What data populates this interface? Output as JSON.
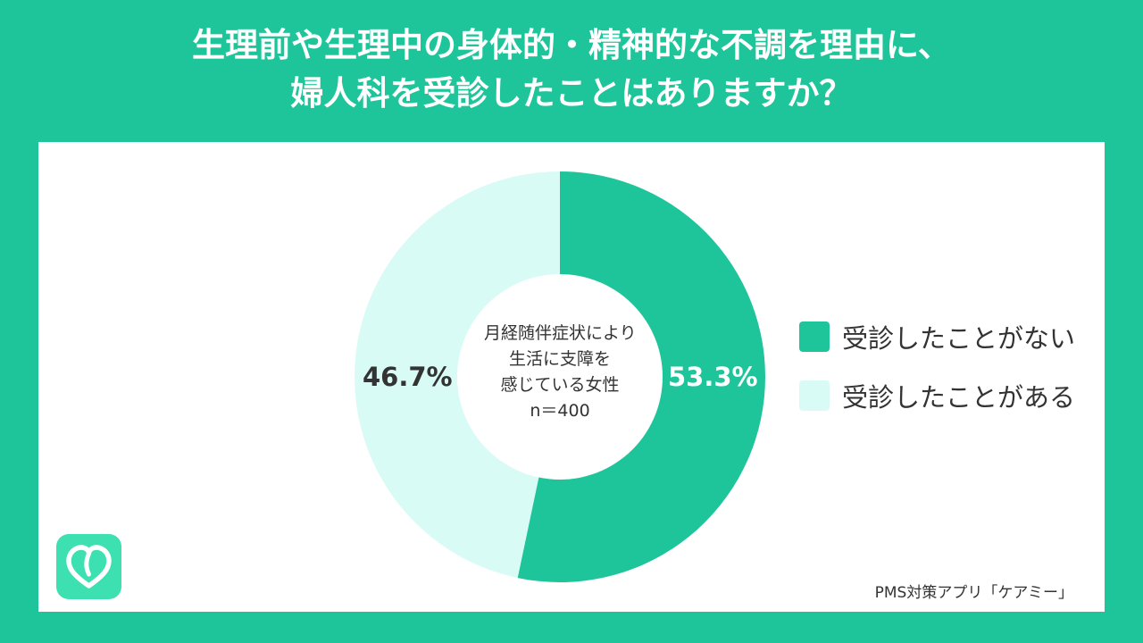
{
  "title_lines": [
    "生理前や生理中の身体的・精神的な不調を理由に、",
    "婦人科を受診したことはありますか？"
  ],
  "center_label_lines": [
    "月経随伴症状により",
    "生活に支障を",
    "感じている女性",
    "n＝400"
  ],
  "credit": "PMS対策アプリ「ケアミー」",
  "logo_icon": "heart-icon",
  "colors": {
    "background": "#1fc59a",
    "series_no": "#1fc59a",
    "series_yes": "#d9fbf6",
    "logo": "#3de0b0"
  },
  "chart_data": {
    "type": "pie",
    "donut": true,
    "categories": [
      "受診したことがない",
      "受診したことがある"
    ],
    "values": [
      53.3,
      46.7
    ],
    "labels": [
      "53.3%",
      "46.7%"
    ],
    "legend_position": "right"
  }
}
